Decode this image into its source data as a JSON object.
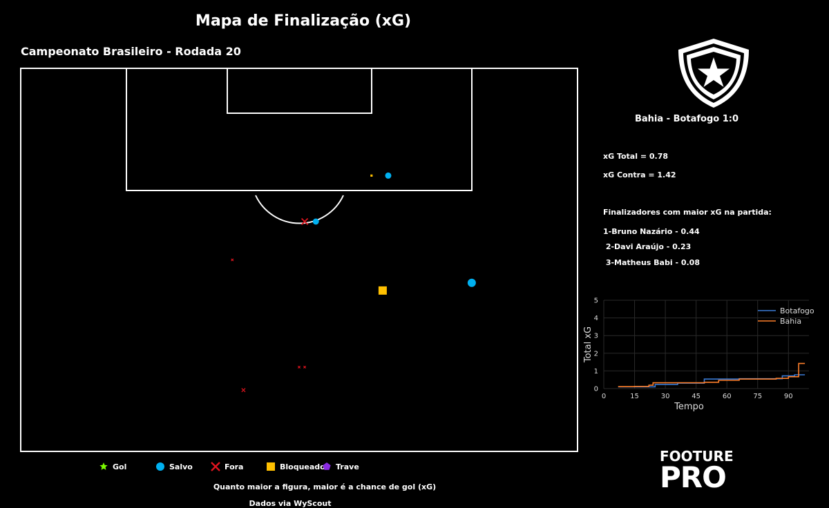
{
  "title": "Mapa de Finalização (xG)",
  "subtitle": "Campeonato Brasileiro - Rodada 20",
  "match": "Bahia - Botafogo 1:0",
  "stats": {
    "xg_total": "xG Total = 0.78",
    "xg_contra": "xG Contra = 1.42",
    "top_heading": "Finalizadores com maior xG na partida:",
    "top": [
      "1-Bruno Nazário - 0.44",
      " 2-Davi Araújo - 0.23",
      " 3-Matheus Babi - 0.08"
    ]
  },
  "legend": [
    {
      "label": "Gol",
      "shape": "star",
      "color": "#7cfc00"
    },
    {
      "label": "Salvo",
      "shape": "circle",
      "color": "#00b0f0"
    },
    {
      "label": "Fora",
      "shape": "x",
      "color": "#e0141e"
    },
    {
      "label": "Bloqueado",
      "shape": "square",
      "color": "#ffc000"
    },
    {
      "label": "Trave",
      "shape": "pentagon",
      "color": "#8a2be2"
    }
  ],
  "footer": {
    "size_note": "Quanto maior a figura, maior é a chance de gol (xG)",
    "source": "Dados via WyScout"
  },
  "brand": {
    "line1": "FOOTURE",
    "line2": "PRO"
  },
  "chart_data": [
    {
      "type": "scatter",
      "title": "Mapa de Finalização (xG)",
      "shots": [
        {
          "x": 72,
          "y": 81,
          "outcome": "Salvo",
          "size": "large"
        },
        {
          "x": 71,
          "y": 65,
          "outcome": "Bloqueado",
          "size": "large"
        },
        {
          "x": 61,
          "y": 50,
          "outcome": "Fora",
          "size": "tiny"
        },
        {
          "x": 61,
          "y": 51,
          "outcome": "Fora",
          "size": "tiny"
        },
        {
          "x": 75,
          "y": 38,
          "outcome": "Fora",
          "size": "tiny"
        },
        {
          "x": 80,
          "y": 51,
          "outcome": "Fora",
          "size": "medium"
        },
        {
          "x": 80,
          "y": 53,
          "outcome": "Salvo",
          "size": "medium"
        },
        {
          "x": 86,
          "y": 63,
          "outcome": "Bloqueado",
          "size": "tiny"
        },
        {
          "x": 86,
          "y": 66,
          "outcome": "Salvo",
          "size": "medium"
        },
        {
          "x": 58,
          "y": 40,
          "outcome": "Fora",
          "size": "small"
        }
      ]
    },
    {
      "type": "line",
      "xlabel": "Tempo",
      "ylabel": "Total xG",
      "xlim": [
        0,
        100
      ],
      "ylim": [
        0,
        5
      ],
      "xticks": [
        0,
        15,
        30,
        45,
        60,
        75,
        90
      ],
      "yticks": [
        0,
        1,
        2,
        3,
        4,
        5
      ],
      "grid": true,
      "legend_position": "top-right",
      "series": [
        {
          "name": "Botafogo",
          "color": "#3a7bd5",
          "x": [
            7,
            15,
            25,
            36,
            49,
            66,
            87,
            93,
            98
          ],
          "y": [
            0.1,
            0.1,
            0.23,
            0.31,
            0.54,
            0.56,
            0.72,
            0.78,
            0.78
          ]
        },
        {
          "name": "Bahia",
          "color": "#ff7f2a",
          "x": [
            7,
            15,
            22,
            24,
            49,
            56,
            66,
            84,
            90,
            95,
            98
          ],
          "y": [
            0.11,
            0.12,
            0.19,
            0.33,
            0.36,
            0.47,
            0.54,
            0.58,
            0.67,
            1.42,
            1.42
          ]
        }
      ]
    }
  ]
}
